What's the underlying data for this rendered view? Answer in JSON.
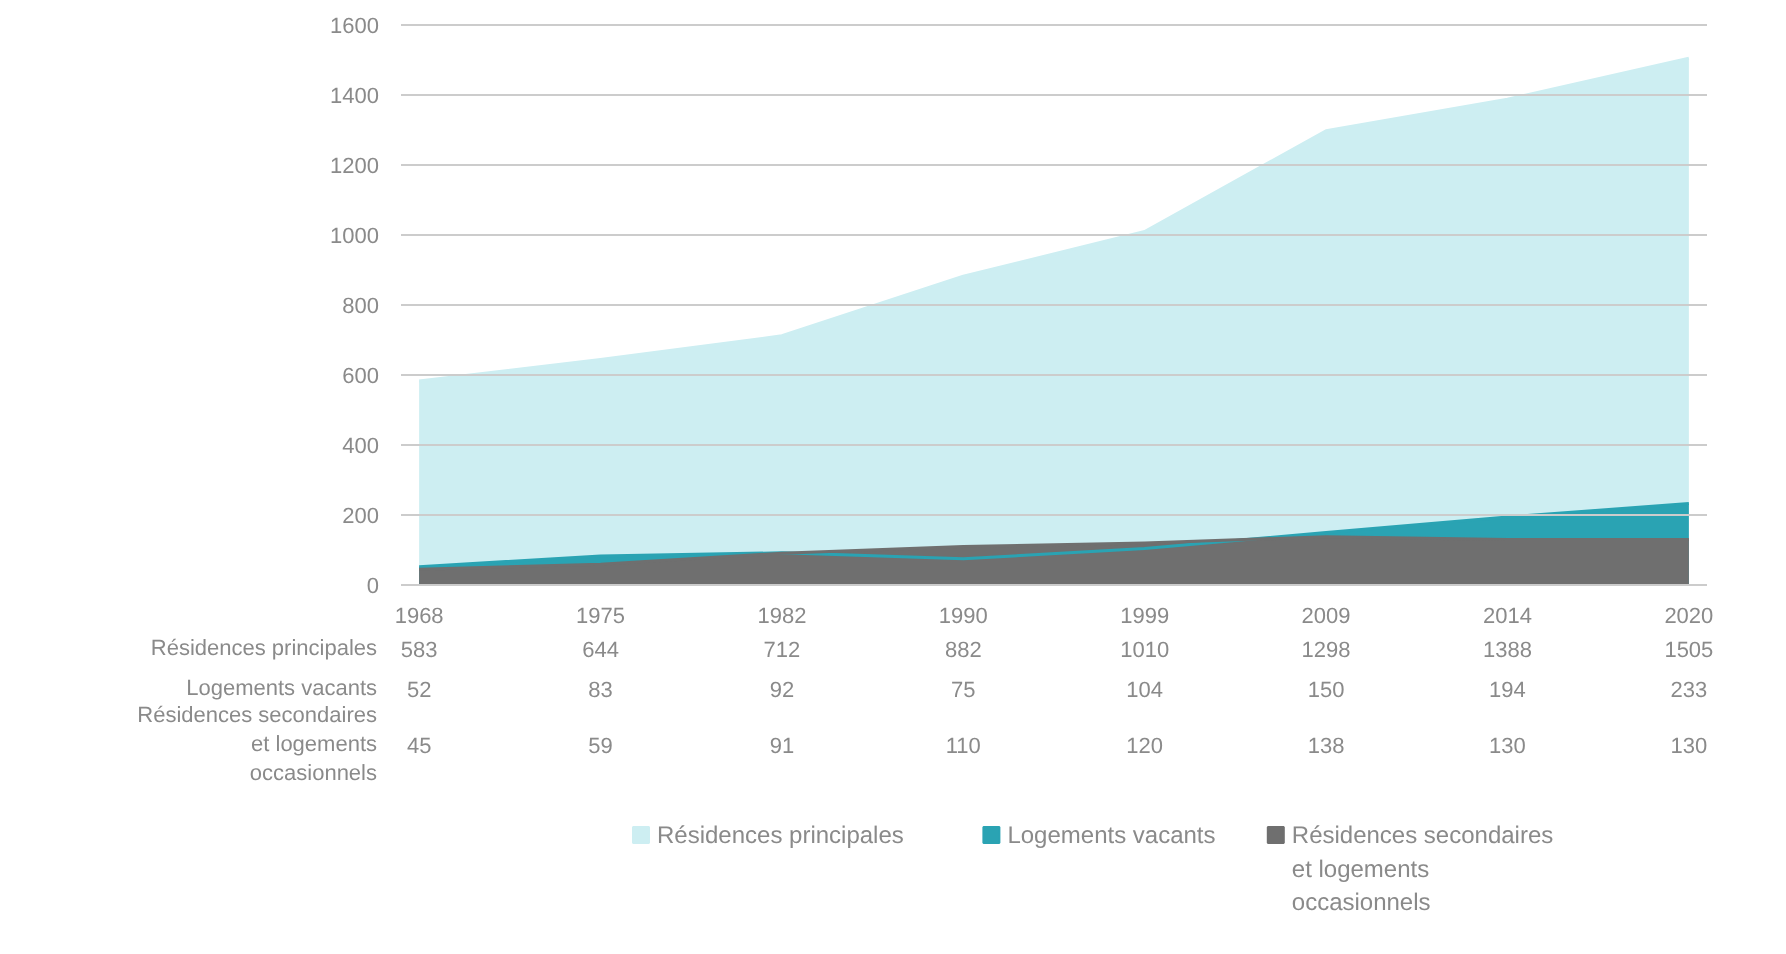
{
  "chart_data": {
    "type": "area",
    "categories": [
      "1968",
      "1975",
      "1982",
      "1990",
      "1999",
      "2009",
      "2014",
      "2020"
    ],
    "series": [
      {
        "name": "Résidences principales",
        "color": "#cdeef2",
        "values": [
          583,
          644,
          712,
          882,
          1010,
          1298,
          1388,
          1505
        ]
      },
      {
        "name": "Logements vacants",
        "color": "#2aa3b3",
        "values": [
          52,
          83,
          92,
          75,
          104,
          150,
          194,
          233
        ]
      },
      {
        "name": "Résidences secondaires et logements occasionnels",
        "color": "#6f6f6f",
        "values": [
          45,
          59,
          91,
          110,
          120,
          138,
          130,
          130
        ]
      }
    ],
    "ylim": [
      0,
      1600
    ],
    "yticks": [
      0,
      200,
      400,
      600,
      800,
      1000,
      1200,
      1400,
      1600
    ],
    "grid": "y",
    "legend": "bottom",
    "data_labels": true
  }
}
